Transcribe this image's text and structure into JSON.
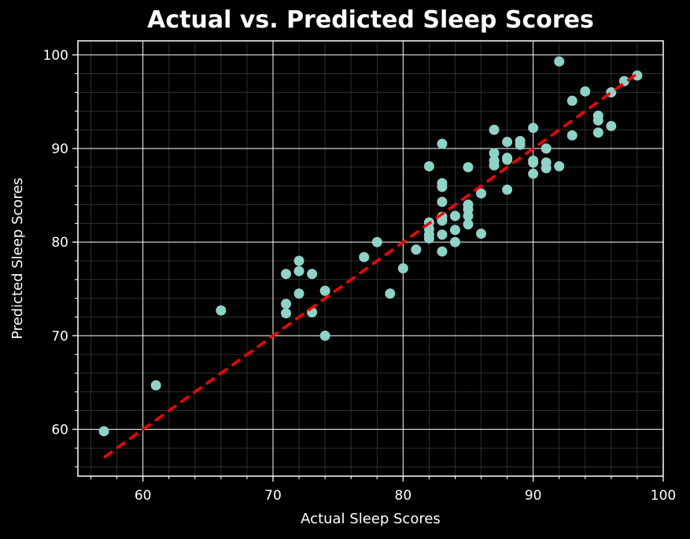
{
  "chart_data": {
    "type": "scatter",
    "title": "Actual vs. Predicted Sleep Scores",
    "xlabel": "Actual Sleep Scores",
    "ylabel": "Predicted Sleep Scores",
    "xlim": [
      55,
      100
    ],
    "ylim": [
      55,
      101.5
    ],
    "xticks": [
      60,
      70,
      80,
      90,
      100
    ],
    "yticks": [
      60,
      70,
      80,
      90,
      100
    ],
    "grid": true,
    "minor_grid": true,
    "colors": {
      "background": "#000000",
      "points": "#8dd3c7",
      "reference_line": "#ff0000",
      "major_grid": "#ffffff",
      "minor_grid": "#3a3a3a",
      "text": "#ffffff"
    },
    "reference_line": {
      "style": "dashed",
      "points": [
        [
          57,
          57
        ],
        [
          98,
          98
        ]
      ]
    },
    "points": [
      [
        57,
        59.8
      ],
      [
        61,
        64.7
      ],
      [
        66,
        72.7
      ],
      [
        71,
        76.6
      ],
      [
        71,
        73.4
      ],
      [
        71,
        72.4
      ],
      [
        72,
        78.0
      ],
      [
        72,
        76.9
      ],
      [
        72,
        74.5
      ],
      [
        73,
        76.6
      ],
      [
        73,
        72.5
      ],
      [
        74,
        74.8
      ],
      [
        74,
        70.0
      ],
      [
        77,
        78.4
      ],
      [
        78,
        80.0
      ],
      [
        79,
        74.5
      ],
      [
        80,
        77.2
      ],
      [
        81,
        79.2
      ],
      [
        82,
        88.1
      ],
      [
        82,
        82.1
      ],
      [
        82,
        81.4
      ],
      [
        82,
        80.8
      ],
      [
        82,
        80.4
      ],
      [
        83,
        90.5
      ],
      [
        83,
        86.3
      ],
      [
        83,
        85.9
      ],
      [
        83,
        84.3
      ],
      [
        83,
        82.7
      ],
      [
        83,
        82.3
      ],
      [
        83,
        80.8
      ],
      [
        83,
        79.0
      ],
      [
        84,
        82.8
      ],
      [
        84,
        81.3
      ],
      [
        84,
        80.0
      ],
      [
        85,
        88.0
      ],
      [
        85,
        84.0
      ],
      [
        85,
        83.5
      ],
      [
        85,
        82.8
      ],
      [
        85,
        81.9
      ],
      [
        86,
        85.2
      ],
      [
        86,
        80.9
      ],
      [
        87,
        92.0
      ],
      [
        87,
        89.5
      ],
      [
        87,
        88.7
      ],
      [
        87,
        88.2
      ],
      [
        88,
        90.7
      ],
      [
        88,
        89.0
      ],
      [
        88,
        88.8
      ],
      [
        88,
        85.6
      ],
      [
        89,
        90.8
      ],
      [
        89,
        90.4
      ],
      [
        90,
        92.2
      ],
      [
        90,
        88.7
      ],
      [
        90,
        88.5
      ],
      [
        90,
        87.3
      ],
      [
        91,
        90.0
      ],
      [
        91,
        88.5
      ],
      [
        91,
        87.9
      ],
      [
        92,
        99.3
      ],
      [
        92,
        88.1
      ],
      [
        93,
        95.1
      ],
      [
        93,
        91.4
      ],
      [
        94,
        96.1
      ],
      [
        95,
        93.5
      ],
      [
        95,
        93.0
      ],
      [
        95,
        91.7
      ],
      [
        96,
        96.0
      ],
      [
        96,
        92.4
      ],
      [
        97,
        97.2
      ],
      [
        98,
        97.8
      ]
    ]
  }
}
